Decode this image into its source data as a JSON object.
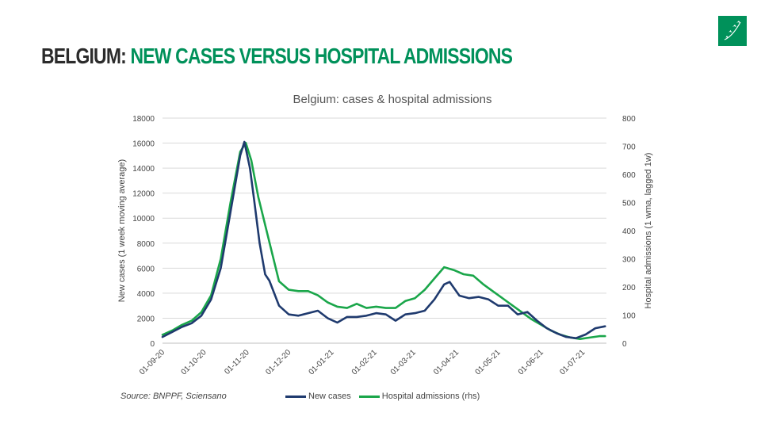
{
  "slide": {
    "title_country": "BELGIUM:",
    "title_rest": "NEW CASES VERSUS HOSPITAL ADMISSIONS",
    "logo_icon": "bnp-paribas-stars-logo-icon",
    "brand_color": "#00915a"
  },
  "source": "Source: BNPPF, Sciensano",
  "chart_data": {
    "type": "line",
    "title": "Belgium: cases & hospital admissions",
    "xlabel": "",
    "ylabel": "New cases (1 week moving average)",
    "y2label": "Hospital admissions (1 wma, lagged 1w)",
    "x": [
      "01-09-20",
      "01-10-20",
      "01-11-20",
      "01-12-20",
      "01-01-21",
      "01-02-21",
      "01-03-21",
      "01-04-21",
      "01-05-21",
      "01-06-21",
      "01-07-21"
    ],
    "xlim": [
      "2020-09-01",
      "2021-07-18"
    ],
    "ylim": [
      0,
      18000
    ],
    "y2lim": [
      0,
      800
    ],
    "yticks": [
      "0",
      "2000",
      "4000",
      "6000",
      "8000",
      "10000",
      "12000",
      "14000",
      "16000",
      "18000"
    ],
    "y2ticks": [
      "0",
      "100",
      "200",
      "300",
      "400",
      "500",
      "600",
      "700",
      "800"
    ],
    "grid": true,
    "legend_position": "bottom",
    "series": [
      {
        "name": "New cases",
        "color": "#1f3a6e",
        "axis": "left",
        "points": [
          [
            "2020-09-01",
            500
          ],
          [
            "2020-09-08",
            900
          ],
          [
            "2020-09-15",
            1300
          ],
          [
            "2020-09-22",
            1600
          ],
          [
            "2020-09-29",
            2200
          ],
          [
            "2020-10-06",
            3500
          ],
          [
            "2020-10-13",
            6000
          ],
          [
            "2020-10-20",
            10500
          ],
          [
            "2020-10-27",
            15000
          ],
          [
            "2020-10-30",
            16100
          ],
          [
            "2020-11-03",
            14000
          ],
          [
            "2020-11-06",
            11500
          ],
          [
            "2020-11-10",
            8000
          ],
          [
            "2020-11-14",
            5500
          ],
          [
            "2020-11-17",
            5000
          ],
          [
            "2020-11-24",
            3000
          ],
          [
            "2020-12-01",
            2300
          ],
          [
            "2020-12-08",
            2200
          ],
          [
            "2020-12-15",
            2400
          ],
          [
            "2020-12-22",
            2600
          ],
          [
            "2020-12-29",
            2000
          ],
          [
            "2021-01-05",
            1650
          ],
          [
            "2021-01-12",
            2100
          ],
          [
            "2021-01-19",
            2100
          ],
          [
            "2021-01-26",
            2200
          ],
          [
            "2021-02-02",
            2400
          ],
          [
            "2021-02-09",
            2300
          ],
          [
            "2021-02-16",
            1800
          ],
          [
            "2021-02-23",
            2300
          ],
          [
            "2021-03-02",
            2400
          ],
          [
            "2021-03-09",
            2600
          ],
          [
            "2021-03-16",
            3500
          ],
          [
            "2021-03-23",
            4700
          ],
          [
            "2021-03-27",
            4900
          ],
          [
            "2021-04-03",
            3800
          ],
          [
            "2021-04-10",
            3600
          ],
          [
            "2021-04-17",
            3700
          ],
          [
            "2021-04-24",
            3500
          ],
          [
            "2021-05-01",
            3000
          ],
          [
            "2021-05-08",
            3000
          ],
          [
            "2021-05-15",
            2300
          ],
          [
            "2021-05-22",
            2500
          ],
          [
            "2021-05-29",
            1800
          ],
          [
            "2021-06-05",
            1200
          ],
          [
            "2021-06-12",
            800
          ],
          [
            "2021-06-19",
            500
          ],
          [
            "2021-06-26",
            400
          ],
          [
            "2021-07-03",
            700
          ],
          [
            "2021-07-10",
            1200
          ],
          [
            "2021-07-17",
            1350
          ]
        ]
      },
      {
        "name": "Hospital admissions (rhs)",
        "color": "#1aa64a",
        "axis": "right",
        "points": [
          [
            "2020-09-01",
            30
          ],
          [
            "2020-09-08",
            45
          ],
          [
            "2020-09-15",
            65
          ],
          [
            "2020-09-22",
            80
          ],
          [
            "2020-09-29",
            110
          ],
          [
            "2020-10-06",
            170
          ],
          [
            "2020-10-13",
            300
          ],
          [
            "2020-10-20",
            500
          ],
          [
            "2020-10-27",
            680
          ],
          [
            "2020-10-31",
            712
          ],
          [
            "2020-11-04",
            650
          ],
          [
            "2020-11-09",
            520
          ],
          [
            "2020-11-16",
            380
          ],
          [
            "2020-11-24",
            220
          ],
          [
            "2020-12-01",
            190
          ],
          [
            "2020-12-08",
            185
          ],
          [
            "2020-12-15",
            185
          ],
          [
            "2020-12-22",
            170
          ],
          [
            "2020-12-29",
            145
          ],
          [
            "2021-01-05",
            130
          ],
          [
            "2021-01-12",
            125
          ],
          [
            "2021-01-19",
            140
          ],
          [
            "2021-01-26",
            125
          ],
          [
            "2021-02-02",
            130
          ],
          [
            "2021-02-09",
            125
          ],
          [
            "2021-02-16",
            125
          ],
          [
            "2021-02-23",
            150
          ],
          [
            "2021-03-02",
            160
          ],
          [
            "2021-03-09",
            190
          ],
          [
            "2021-03-16",
            230
          ],
          [
            "2021-03-23",
            270
          ],
          [
            "2021-03-30",
            260
          ],
          [
            "2021-04-06",
            245
          ],
          [
            "2021-04-13",
            240
          ],
          [
            "2021-04-20",
            210
          ],
          [
            "2021-04-27",
            185
          ],
          [
            "2021-05-04",
            160
          ],
          [
            "2021-05-11",
            135
          ],
          [
            "2021-05-18",
            110
          ],
          [
            "2021-05-25",
            85
          ],
          [
            "2021-06-01",
            65
          ],
          [
            "2021-06-08",
            45
          ],
          [
            "2021-06-15",
            30
          ],
          [
            "2021-06-22",
            20
          ],
          [
            "2021-06-29",
            15
          ],
          [
            "2021-07-06",
            20
          ],
          [
            "2021-07-13",
            25
          ],
          [
            "2021-07-17",
            25
          ]
        ]
      }
    ]
  }
}
